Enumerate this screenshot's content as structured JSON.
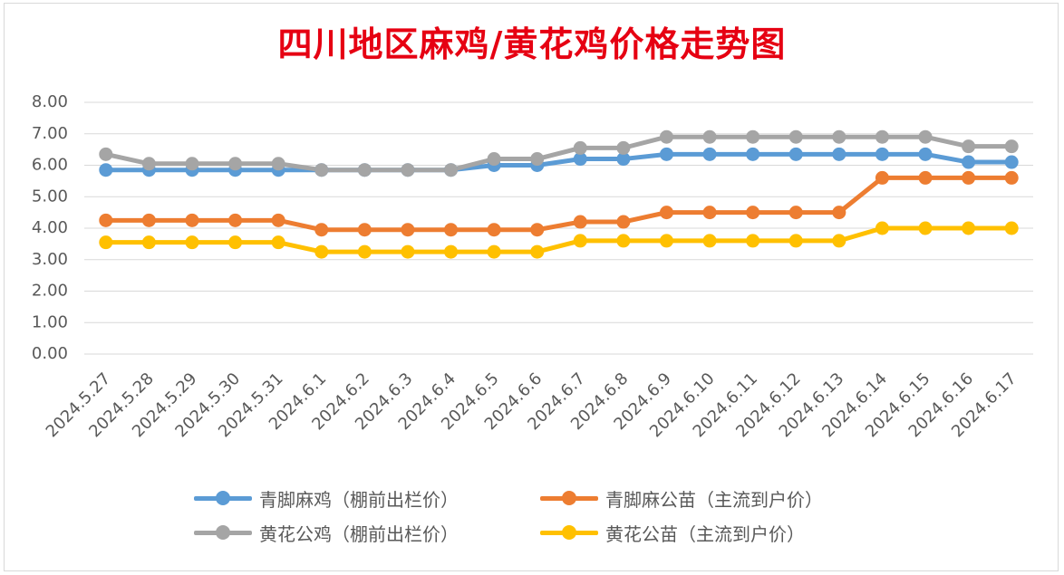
{
  "chart_data": {
    "type": "line",
    "title": "四川地区麻鸡/黄花鸡价格走势图",
    "xlabel": "",
    "ylabel": "",
    "ylim": [
      0,
      8
    ],
    "yticks": [
      "0.00",
      "1.00",
      "2.00",
      "3.00",
      "4.00",
      "5.00",
      "6.00",
      "7.00",
      "8.00"
    ],
    "grid": true,
    "legend_position": "bottom",
    "categories": [
      "2024.5.27",
      "2024.5.28",
      "2024.5.29",
      "2024.5.30",
      "2024.5.31",
      "2024.6.1",
      "2024.6.2",
      "2024.6.3",
      "2024.6.4",
      "2024.6.5",
      "2024.6.6",
      "2024.6.7",
      "2024.6.8",
      "2024.6.9",
      "2024.6.10",
      "2024.6.11",
      "2024.6.12",
      "2024.6.13",
      "2024.6.14",
      "2024.6.15",
      "2024.6.16",
      "2024.6.17"
    ],
    "series": [
      {
        "name": "青脚麻鸡（棚前出栏价）",
        "color": "#5b9bd5",
        "values": [
          5.85,
          5.85,
          5.85,
          5.85,
          5.85,
          5.85,
          5.85,
          5.85,
          5.85,
          6.0,
          6.0,
          6.2,
          6.2,
          6.35,
          6.35,
          6.35,
          6.35,
          6.35,
          6.35,
          6.35,
          6.1,
          6.1
        ]
      },
      {
        "name": "青脚麻公苗（主流到户价）",
        "color": "#ed7d31",
        "values": [
          4.25,
          4.25,
          4.25,
          4.25,
          4.25,
          3.95,
          3.95,
          3.95,
          3.95,
          3.95,
          3.95,
          4.2,
          4.2,
          4.5,
          4.5,
          4.5,
          4.5,
          4.5,
          5.6,
          5.6,
          5.6,
          5.6
        ]
      },
      {
        "name": "黄花公鸡（棚前出栏价）",
        "color": "#a5a5a5",
        "values": [
          6.35,
          6.05,
          6.05,
          6.05,
          6.05,
          5.85,
          5.85,
          5.85,
          5.85,
          6.2,
          6.2,
          6.55,
          6.55,
          6.9,
          6.9,
          6.9,
          6.9,
          6.9,
          6.9,
          6.9,
          6.6,
          6.6
        ]
      },
      {
        "name": "黄花公苗（主流到户价）",
        "color": "#ffc000",
        "values": [
          3.55,
          3.55,
          3.55,
          3.55,
          3.55,
          3.25,
          3.25,
          3.25,
          3.25,
          3.25,
          3.25,
          3.6,
          3.6,
          3.6,
          3.6,
          3.6,
          3.6,
          3.6,
          4.0,
          4.0,
          4.0,
          4.0
        ]
      }
    ]
  }
}
